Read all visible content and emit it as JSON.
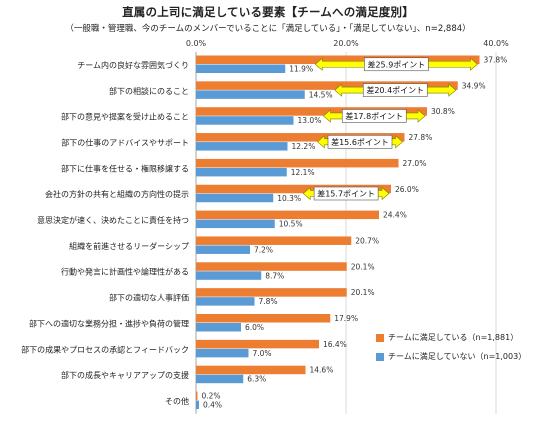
{
  "title": "直属の上司に満足している要素【チームへの満足度別】",
  "subtitle": "（一般職・管理職、今のチームのメンバーでいることに「満足している」・「満足していない」、n=2,884）",
  "chart_data": {
    "type": "bar",
    "orientation": "horizontal",
    "xlim": [
      0,
      40
    ],
    "ticks": [
      "0.0%",
      "20.0%",
      "40.0%"
    ],
    "tick_values": [
      0,
      20,
      40
    ],
    "grid": true,
    "legend_position": "bottom-right",
    "categories": [
      "チーム内の良好な雰囲気づくり",
      "部下の相談にのること",
      "部下の意見や提案を受け止めること",
      "部下の仕事のアドバイスやサポート",
      "部下に仕事を任せる・権限移譲する",
      "会社の方針の共有と組織の方向性の提示",
      "意思決定が速く、決めたことに責任を持つ",
      "組織を前進させるリーダーシップ",
      "行動や発言に計画性や論理性がある",
      "部下の適切な人事評価",
      "部下への適切な業務分担・進捗や負荷の管理",
      "部下の成果やプロセスの承認とフィードバック",
      "部下の成長やキャリアアップの支援",
      "その他"
    ],
    "series": [
      {
        "name": "チームに満足している（n=1,881）",
        "color": "#ED7D31",
        "values": [
          37.8,
          34.9,
          30.8,
          27.8,
          27.0,
          26.0,
          24.4,
          20.7,
          20.1,
          20.1,
          17.9,
          16.4,
          14.6,
          0.2
        ],
        "labels": [
          "37.8%",
          "34.9%",
          "30.8%",
          "27.8%",
          "27.0%",
          "26.0%",
          "24.4%",
          "20.7%",
          "20.1%",
          "20.1%",
          "17.9%",
          "16.4%",
          "14.6%",
          "0.2%"
        ]
      },
      {
        "name": "チームに満足していない（n=1,003）",
        "color": "#5B9BD5",
        "values": [
          11.9,
          14.5,
          13.0,
          12.2,
          12.1,
          10.3,
          10.5,
          7.2,
          8.7,
          7.8,
          6.0,
          7.0,
          6.3,
          0.4
        ],
        "labels": [
          "11.9%",
          "14.5%",
          "13.0%",
          "12.2%",
          "12.1%",
          "10.3%",
          "10.5%",
          "7.2%",
          "8.7%",
          "7.8%",
          "6.0%",
          "7.0%",
          "6.3%",
          "0.4%"
        ]
      }
    ],
    "annotations": [
      {
        "category_index": 0,
        "text": "差25.9ポイント",
        "from": 11.9,
        "to": 37.8
      },
      {
        "category_index": 1,
        "text": "差20.4ポイント",
        "from": 14.5,
        "to": 34.9
      },
      {
        "category_index": 2,
        "text": "差17.8ポイント",
        "from": 13.0,
        "to": 30.8
      },
      {
        "category_index": 3,
        "text": "差15.6ポイント",
        "from": 12.2,
        "to": 27.8
      },
      {
        "category_index": 5,
        "text": "差15.7ポイント",
        "from": 10.3,
        "to": 26.0
      }
    ],
    "annotation_color": "#FFFF00"
  }
}
